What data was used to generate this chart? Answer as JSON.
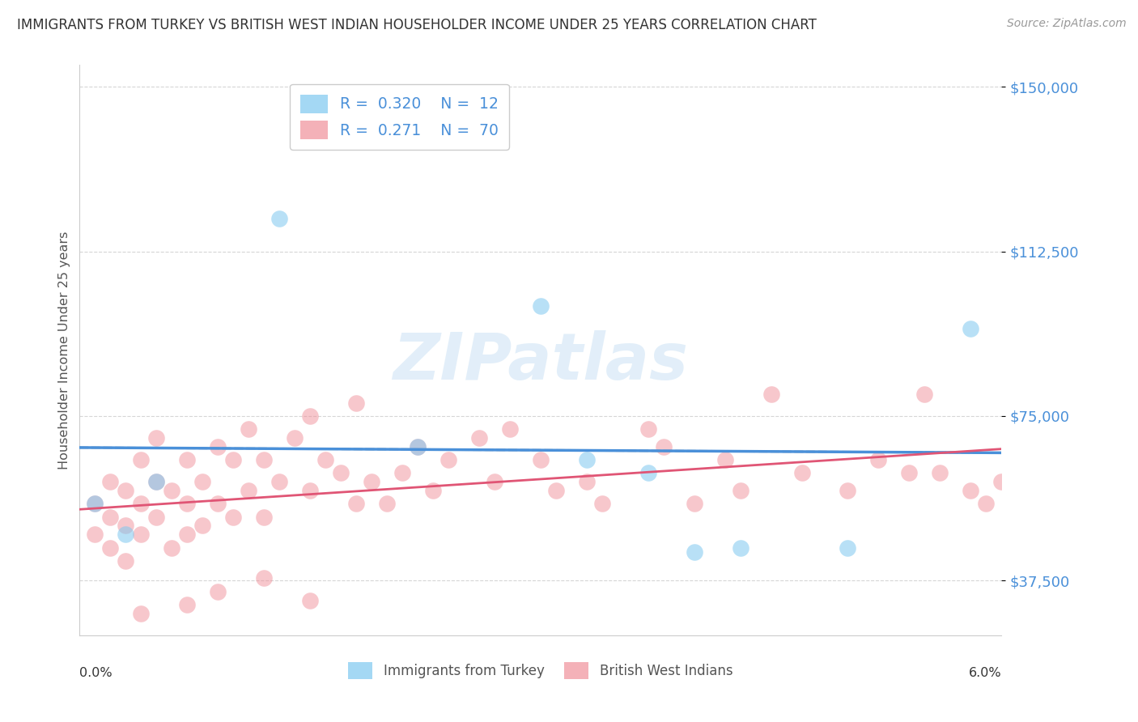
{
  "title": "IMMIGRANTS FROM TURKEY VS BRITISH WEST INDIAN HOUSEHOLDER INCOME UNDER 25 YEARS CORRELATION CHART",
  "source": "Source: ZipAtlas.com",
  "ylabel": "Householder Income Under 25 years",
  "xlim": [
    0.0,
    0.06
  ],
  "ylim": [
    25000,
    155000
  ],
  "yticks": [
    37500,
    75000,
    112500,
    150000
  ],
  "ytick_labels": [
    "$37,500",
    "$75,000",
    "$112,500",
    "$150,000"
  ],
  "background_color": "#ffffff",
  "watermark_text": "ZIPatlas",
  "turkey_color": "#7ec8f0",
  "bwi_color": "#f0909a",
  "turkey_line_color": "#4a90d9",
  "bwi_line_color": "#e05575",
  "turkey_R": 0.32,
  "turkey_N": 12,
  "bwi_R": 0.271,
  "bwi_N": 70,
  "turkey_x": [
    0.001,
    0.003,
    0.005,
    0.013,
    0.022,
    0.03,
    0.033,
    0.037,
    0.04,
    0.043,
    0.05,
    0.058
  ],
  "turkey_y": [
    55000,
    48000,
    60000,
    120000,
    68000,
    100000,
    65000,
    62000,
    44000,
    45000,
    45000,
    95000
  ],
  "bwi_x": [
    0.001,
    0.001,
    0.002,
    0.002,
    0.002,
    0.003,
    0.003,
    0.003,
    0.004,
    0.004,
    0.004,
    0.005,
    0.005,
    0.005,
    0.006,
    0.006,
    0.007,
    0.007,
    0.007,
    0.008,
    0.008,
    0.009,
    0.009,
    0.01,
    0.01,
    0.011,
    0.011,
    0.012,
    0.012,
    0.013,
    0.014,
    0.015,
    0.015,
    0.016,
    0.017,
    0.018,
    0.018,
    0.019,
    0.02,
    0.021,
    0.022,
    0.023,
    0.024,
    0.026,
    0.027,
    0.028,
    0.03,
    0.031,
    0.033,
    0.034,
    0.037,
    0.038,
    0.04,
    0.042,
    0.043,
    0.045,
    0.047,
    0.05,
    0.052,
    0.054,
    0.055,
    0.056,
    0.058,
    0.059,
    0.06,
    0.004,
    0.007,
    0.009,
    0.012,
    0.015
  ],
  "bwi_y": [
    55000,
    48000,
    60000,
    52000,
    45000,
    58000,
    50000,
    42000,
    65000,
    55000,
    48000,
    70000,
    60000,
    52000,
    58000,
    45000,
    65000,
    55000,
    48000,
    60000,
    50000,
    68000,
    55000,
    65000,
    52000,
    72000,
    58000,
    65000,
    52000,
    60000,
    70000,
    75000,
    58000,
    65000,
    62000,
    78000,
    55000,
    60000,
    55000,
    62000,
    68000,
    58000,
    65000,
    70000,
    60000,
    72000,
    65000,
    58000,
    60000,
    55000,
    72000,
    68000,
    55000,
    65000,
    58000,
    80000,
    62000,
    58000,
    65000,
    62000,
    80000,
    62000,
    58000,
    55000,
    60000,
    30000,
    32000,
    35000,
    38000,
    33000
  ]
}
